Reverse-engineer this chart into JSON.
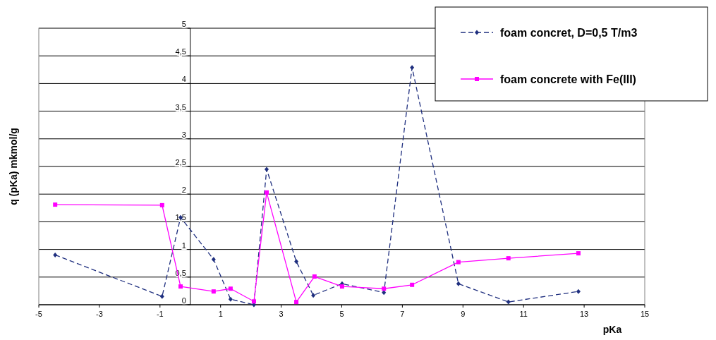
{
  "chart_data": {
    "type": "line",
    "xlabel": "pKa",
    "ylabel": "q (pKa) mkmol/g",
    "xlim": [
      -5,
      15
    ],
    "ylim": [
      0,
      5
    ],
    "xticks": [
      -5,
      -3,
      -1,
      1,
      3,
      5,
      7,
      9,
      11,
      13,
      15
    ],
    "yticks": [
      0,
      {
        "value": 0.5,
        "label": "0,5"
      },
      1,
      {
        "value": 1.5,
        "label": "1,5"
      },
      2,
      {
        "value": 2.5,
        "label": "2,5"
      },
      3,
      {
        "value": 3.5,
        "label": "3,5"
      },
      4,
      {
        "value": 4.5,
        "label": "4,5"
      },
      5
    ],
    "grid": "y",
    "legend": "top right",
    "series": [
      {
        "name": "foam concret, D=0,5 T/m3",
        "color": "#1f2f7f",
        "marker": "diamond",
        "line_style": "dashed",
        "x": [
          -4.46,
          -0.93,
          -0.32,
          0.77,
          1.33,
          2.1,
          2.52,
          3.5,
          4.06,
          5.01,
          6.39,
          7.32,
          8.85,
          10.5,
          12.81
        ],
        "values": [
          0.9,
          0.15,
          1.58,
          0.82,
          0.1,
          0,
          2.45,
          0.78,
          0.17,
          0.38,
          0.22,
          4.29,
          0.38,
          0.05,
          0.24
        ]
      },
      {
        "name": "foam concrete with Fe(III)",
        "color": "#ff00ff",
        "marker": "square",
        "line_style": "solid",
        "x": [
          -4.46,
          -0.93,
          -0.32,
          0.77,
          1.33,
          2.1,
          2.52,
          3.5,
          4.1,
          5.01,
          6.39,
          7.32,
          8.85,
          10.5,
          12.81
        ],
        "values": [
          1.81,
          1.8,
          0.33,
          0.24,
          0.29,
          0.06,
          2.03,
          0.05,
          0.51,
          0.33,
          0.29,
          0.36,
          0.77,
          0.84,
          0.93
        ]
      }
    ]
  }
}
